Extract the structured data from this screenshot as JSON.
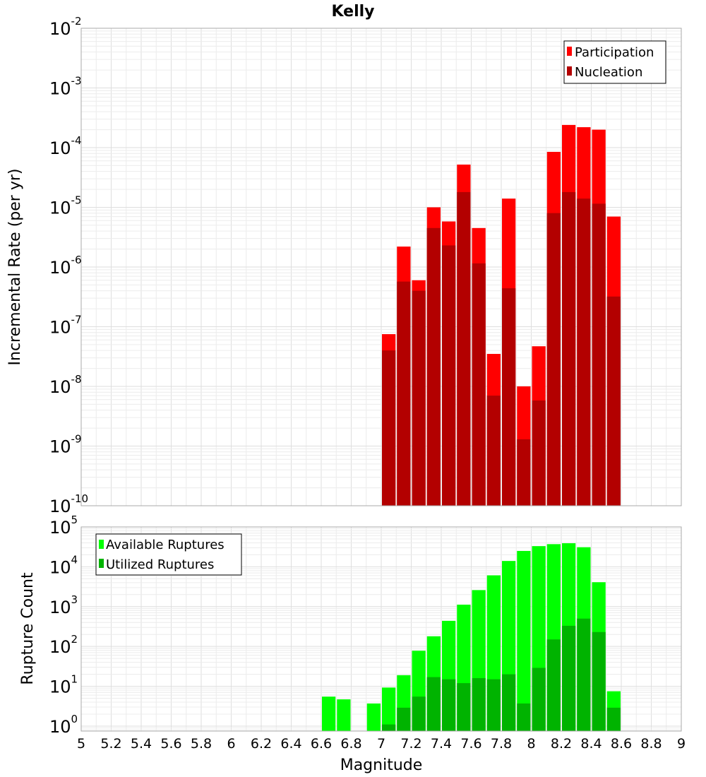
{
  "chart_data": [
    {
      "type": "bar",
      "title": "Kelly",
      "xlabel": "",
      "ylabel": "Incremental Rate (per yr)",
      "yscale": "log",
      "ylim": [
        1e-10,
        0.01
      ],
      "xlim": [
        5,
        9
      ],
      "grid": true,
      "legend_position": "top-right",
      "bar_width": 0.1,
      "y_ticks": [
        {
          "base": "10",
          "exp": "-10",
          "value": 1e-10
        },
        {
          "base": "10",
          "exp": "-9",
          "value": 1e-09
        },
        {
          "base": "10",
          "exp": "-8",
          "value": 1e-08
        },
        {
          "base": "10",
          "exp": "-7",
          "value": 1e-07
        },
        {
          "base": "10",
          "exp": "-6",
          "value": 1e-06
        },
        {
          "base": "10",
          "exp": "-5",
          "value": 1e-05
        },
        {
          "base": "10",
          "exp": "-4",
          "value": 0.0001
        },
        {
          "base": "10",
          "exp": "-3",
          "value": 0.001
        },
        {
          "base": "10",
          "exp": "-2",
          "value": 0.01
        }
      ],
      "x": [
        7.05,
        7.15,
        7.25,
        7.35,
        7.45,
        7.55,
        7.65,
        7.75,
        7.85,
        7.95,
        8.05,
        8.15,
        8.25,
        8.35,
        8.45,
        8.55
      ],
      "series": [
        {
          "name": "Participation",
          "color": "#ff0000",
          "values": [
            7.5e-08,
            2.2e-06,
            6e-07,
            1e-05,
            5.8e-06,
            5.2e-05,
            4.5e-06,
            3.5e-08,
            1.4e-05,
            1e-08,
            4.7e-08,
            8.5e-05,
            0.00024,
            0.00022,
            0.0002,
            7e-06
          ]
        },
        {
          "name": "Nucleation",
          "color": "#b30000",
          "values": [
            4e-08,
            5.7e-07,
            4e-07,
            4.5e-06,
            2.3e-06,
            1.8e-05,
            1.15e-06,
            7e-09,
            4.4e-07,
            1.3e-09,
            5.8e-09,
            8e-06,
            1.8e-05,
            1.4e-05,
            1.15e-05,
            3.2e-07
          ]
        }
      ]
    },
    {
      "type": "bar",
      "title": "",
      "xlabel": "Magnitude",
      "ylabel": "Rupture Count",
      "yscale": "log",
      "ylim": [
        0.75,
        100000
      ],
      "xlim": [
        5,
        9
      ],
      "grid": true,
      "legend_position": "top-left",
      "bar_width": 0.1,
      "x_ticks": [
        "5",
        "5.2",
        "5.4",
        "5.6",
        "5.8",
        "6",
        "6.2",
        "6.4",
        "6.6",
        "6.8",
        "7",
        "7.2",
        "7.4",
        "7.6",
        "7.8",
        "8",
        "8.2",
        "8.4",
        "8.6",
        "8.8",
        "9"
      ],
      "y_ticks": [
        {
          "base": "10",
          "exp": "0",
          "value": 1
        },
        {
          "base": "10",
          "exp": "1",
          "value": 10
        },
        {
          "base": "10",
          "exp": "2",
          "value": 100
        },
        {
          "base": "10",
          "exp": "3",
          "value": 1000
        },
        {
          "base": "10",
          "exp": "4",
          "value": 10000
        },
        {
          "base": "10",
          "exp": "5",
          "value": 100000
        }
      ],
      "x": [
        6.65,
        6.75,
        6.95,
        7.05,
        7.15,
        7.25,
        7.35,
        7.45,
        7.55,
        7.65,
        7.75,
        7.85,
        7.95,
        8.05,
        8.15,
        8.25,
        8.35,
        8.45,
        8.55
      ],
      "series": [
        {
          "name": "Available Ruptures",
          "color": "#00ff00",
          "values": [
            5.5,
            4.7,
            3.7,
            9.3,
            19,
            78,
            180,
            440,
            1120,
            2600,
            6100,
            14000,
            25000,
            33000,
            37000,
            39000,
            31000,
            4100,
            7.5
          ]
        },
        {
          "name": "Utilized Ruptures",
          "color": "#00b300",
          "values": [
            0,
            0,
            0,
            1.1,
            2.9,
            5.5,
            17,
            15,
            12,
            16,
            15,
            20,
            3.7,
            29,
            150,
            330,
            500,
            230,
            2.9
          ]
        }
      ]
    }
  ]
}
